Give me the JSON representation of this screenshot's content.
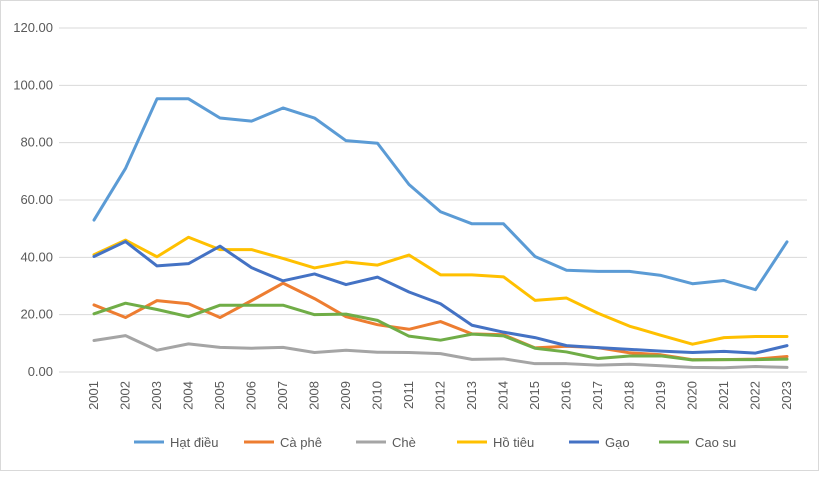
{
  "chart_data": {
    "type": "line",
    "title": "",
    "xlabel": "",
    "ylabel": "",
    "ylim": [
      0,
      120
    ],
    "yticks": [
      "0.00",
      "20.00",
      "40.00",
      "60.00",
      "80.00",
      "100.00",
      "120.00"
    ],
    "grid": true,
    "legend": "bottom",
    "categories": [
      "2001",
      "2002",
      "2003",
      "2004",
      "2005",
      "2006",
      "2007",
      "2008",
      "2009",
      "2010",
      "2011",
      "2012",
      "2013",
      "2014",
      "2015",
      "2016",
      "2017",
      "2018",
      "2019",
      "2020",
      "2021",
      "2022",
      "2023"
    ],
    "series": [
      {
        "name": "Hạt điều",
        "color": "#5b9bd5",
        "values": [
          53,
          71,
          95.3,
          95.3,
          88.6,
          87.5,
          92.1,
          88.6,
          80.7,
          79.8,
          65.4,
          55.9,
          51.7,
          51.7,
          40.3,
          35.5,
          35.1,
          35.1,
          33.7,
          30.8,
          31.9,
          28.7,
          45.4
        ]
      },
      {
        "name": "Cà phê",
        "color": "#ed7d31",
        "values": [
          23.4,
          19.0,
          24.9,
          23.8,
          19.0,
          24.9,
          31.0,
          25.6,
          19.3,
          16.5,
          14.9,
          17.6,
          13.3,
          13.0,
          8.4,
          9.0,
          8.5,
          6.7,
          6.0,
          4.3,
          4.3,
          4.5,
          5.4
        ]
      },
      {
        "name": "Chè",
        "color": "#a5a5a5",
        "values": [
          11.0,
          12.7,
          7.6,
          9.8,
          8.6,
          8.3,
          8.6,
          6.8,
          7.6,
          6.9,
          6.8,
          6.4,
          4.4,
          4.6,
          2.9,
          2.9,
          2.4,
          2.7,
          2.2,
          1.6,
          1.5,
          1.9,
          1.6
        ]
      },
      {
        "name": "Hồ tiêu",
        "color": "#ffc000",
        "values": [
          40.9,
          46.0,
          40.2,
          47.0,
          42.7,
          42.7,
          39.6,
          36.3,
          38.4,
          37.3,
          40.8,
          33.9,
          33.9,
          33.2,
          25.0,
          25.8,
          20.5,
          16.0,
          12.8,
          9.7,
          12.0,
          12.4,
          12.4
        ]
      },
      {
        "name": "Gạo",
        "color": "#4472c4",
        "values": [
          40.3,
          45.5,
          37.0,
          37.8,
          43.9,
          36.4,
          31.8,
          34.2,
          30.5,
          33.1,
          27.9,
          23.8,
          16.3,
          13.9,
          12.0,
          9.2,
          8.5,
          7.9,
          7.3,
          6.8,
          7.2,
          6.6,
          9.2
        ]
      },
      {
        "name": "Cao su",
        "color": "#70ad47",
        "values": [
          20.3,
          24.0,
          21.8,
          19.3,
          23.3,
          23.3,
          23.3,
          20.0,
          20.2,
          18.0,
          12.5,
          11.1,
          13.2,
          12.6,
          8.3,
          7.0,
          4.7,
          5.6,
          5.6,
          4.2,
          4.3,
          4.3,
          4.5
        ]
      }
    ]
  }
}
